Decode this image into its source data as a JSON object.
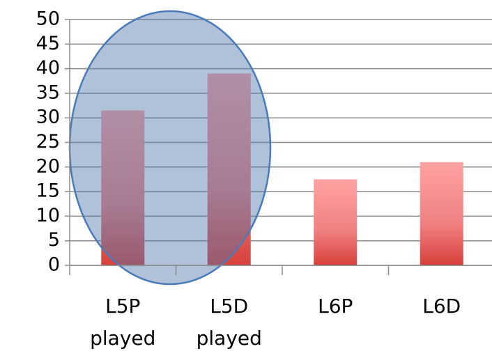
{
  "chart_data": {
    "type": "bar",
    "categories": [
      "L5P played",
      "L5D played",
      "L6P",
      "L6D"
    ],
    "values": [
      31.5,
      39,
      17.5,
      21
    ],
    "color": "#e0504a",
    "ylim": [
      0,
      50
    ],
    "yticks": [
      0,
      5,
      10,
      15,
      20,
      25,
      30,
      35,
      40,
      45,
      50
    ],
    "grid": true
  }
}
